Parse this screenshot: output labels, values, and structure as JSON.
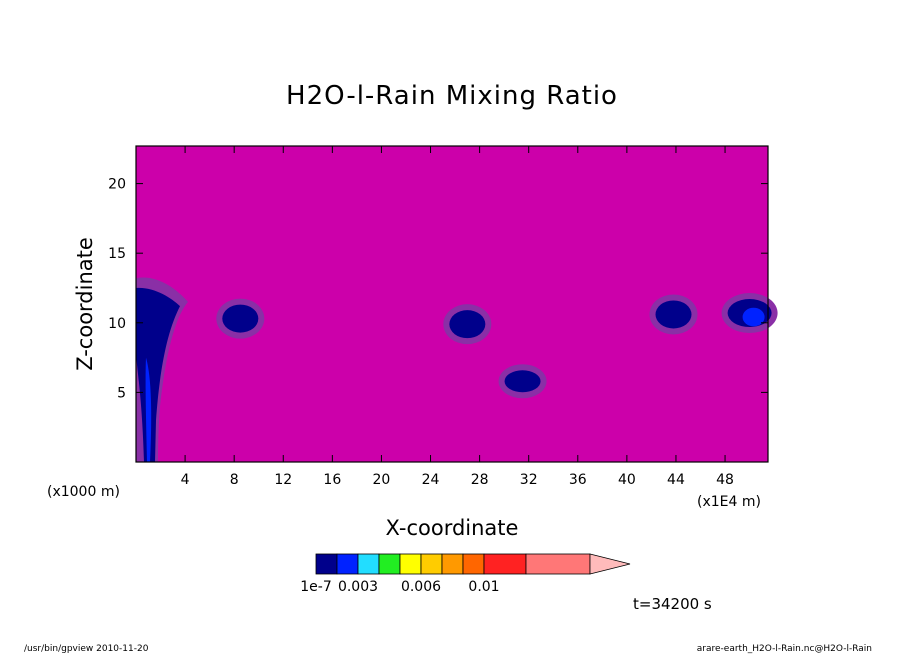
{
  "chart_data": {
    "type": "heatmap",
    "title": "H2O-l-Rain Mixing Ratio",
    "xlabel": "X-coordinate",
    "ylabel": "Z-coordinate",
    "x_unit_left": "(x1000 m)",
    "x_unit_right": "(x1E4 m)",
    "xlim": [
      0,
      51.5
    ],
    "ylim": [
      0,
      22.7
    ],
    "xticks": [
      4,
      8,
      12,
      16,
      20,
      24,
      28,
      32,
      36,
      40,
      44,
      48
    ],
    "xtick_labels": [
      "4",
      "8",
      "12",
      "16",
      "20",
      "24",
      "28",
      "32",
      "36",
      "40",
      "44",
      "48"
    ],
    "yticks": [
      5,
      10,
      15,
      20
    ],
    "ytick_labels": [
      "5",
      "10",
      "15",
      "20"
    ],
    "background_color": "#cc00aa",
    "colorbar": {
      "colors": [
        "#00008b",
        "#0022ff",
        "#22ddff",
        "#22ee22",
        "#ffff00",
        "#ffcc00",
        "#ff9900",
        "#ff6600",
        "#ff2222",
        "#ff7777",
        "#ffbbbb"
      ],
      "labels": [
        "1e-7",
        "0.003",
        "0.006",
        "0.01"
      ],
      "label_at_color_index": [
        0,
        2,
        5,
        8
      ]
    },
    "features": [
      {
        "x": 0.8,
        "z": 9.5,
        "value": "high",
        "shape": "column"
      },
      {
        "x": 8.5,
        "z": 10.3,
        "value": "low",
        "shape": "blob"
      },
      {
        "x": 27.0,
        "z": 9.9,
        "value": "low",
        "shape": "blob"
      },
      {
        "x": 31.5,
        "z": 5.8,
        "value": "low",
        "shape": "blob"
      },
      {
        "x": 43.8,
        "z": 10.6,
        "value": "low",
        "shape": "blob"
      },
      {
        "x": 50.0,
        "z": 10.7,
        "value": "high",
        "shape": "blob"
      }
    ]
  },
  "annotations": {
    "time": "t=34200 s",
    "footer_left": "/usr/bin/gpview   2010-11-20",
    "footer_right": "arare-earth_H2O-l-Rain.nc@H2O-l-Rain"
  }
}
